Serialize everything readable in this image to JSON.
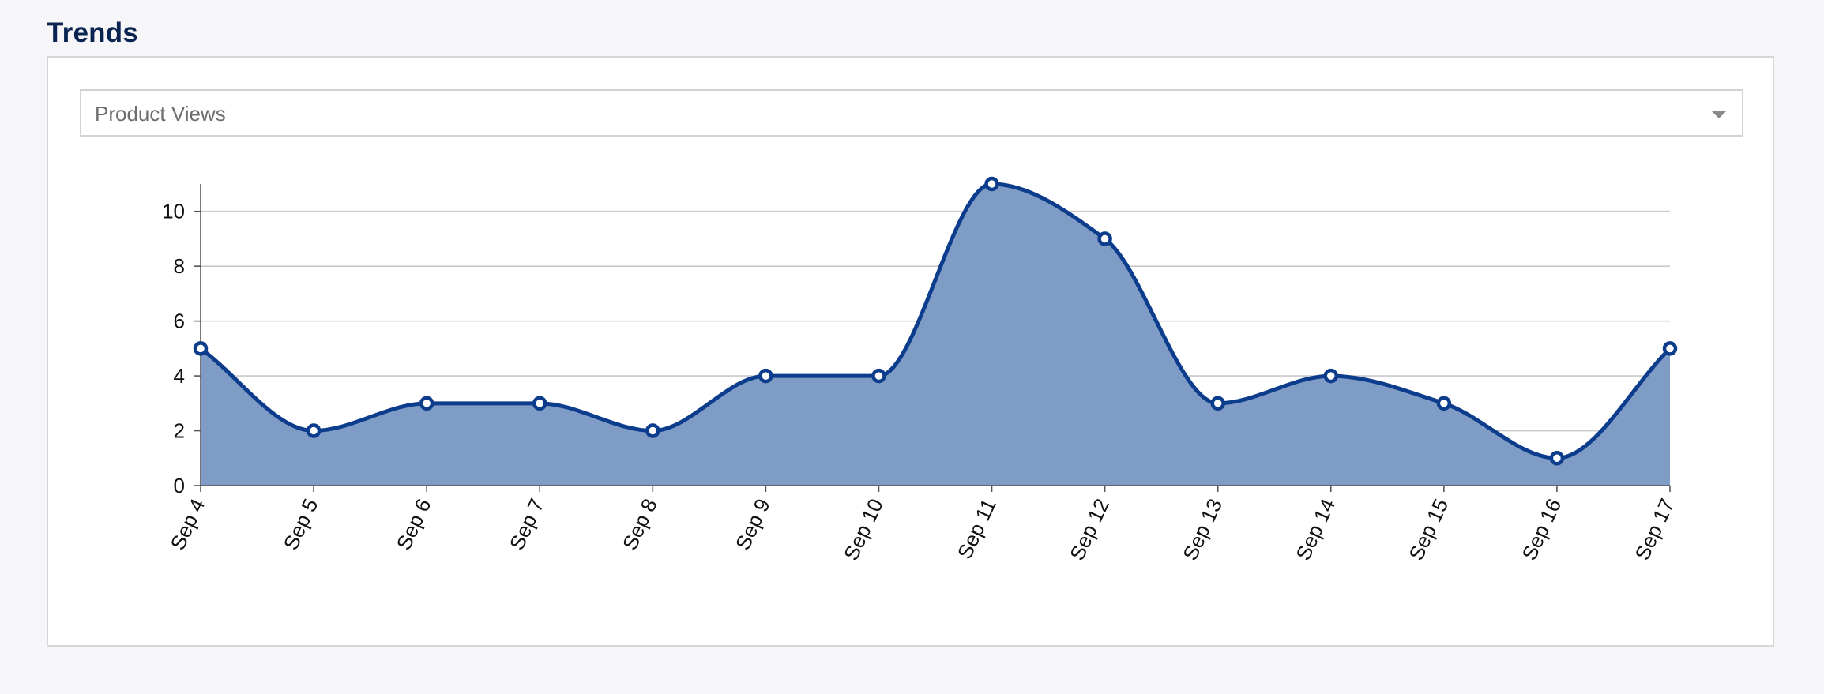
{
  "section": {
    "title": "Trends"
  },
  "selector": {
    "selected": "Product Views",
    "icon": "chevron-down-icon"
  },
  "colors": {
    "line": "#0c3c8c",
    "area": "#7f9cc6",
    "grid": "#c9c9cc",
    "title": "#0a2451"
  },
  "chart_data": {
    "type": "area",
    "title": "",
    "xlabel": "",
    "ylabel": "",
    "categories": [
      "Sep 4",
      "Sep 5",
      "Sep 6",
      "Sep 7",
      "Sep 8",
      "Sep 9",
      "Sep 10",
      "Sep 11",
      "Sep 12",
      "Sep 13",
      "Sep 14",
      "Sep 15",
      "Sep 16",
      "Sep 17"
    ],
    "values": [
      5,
      2,
      3,
      3,
      2,
      4,
      4,
      11,
      9,
      3,
      4,
      3,
      1,
      5
    ],
    "ylim": [
      0,
      11
    ],
    "yticks": [
      0,
      2,
      4,
      6,
      8,
      10
    ],
    "grid": true,
    "smooth": true,
    "markers": true
  }
}
